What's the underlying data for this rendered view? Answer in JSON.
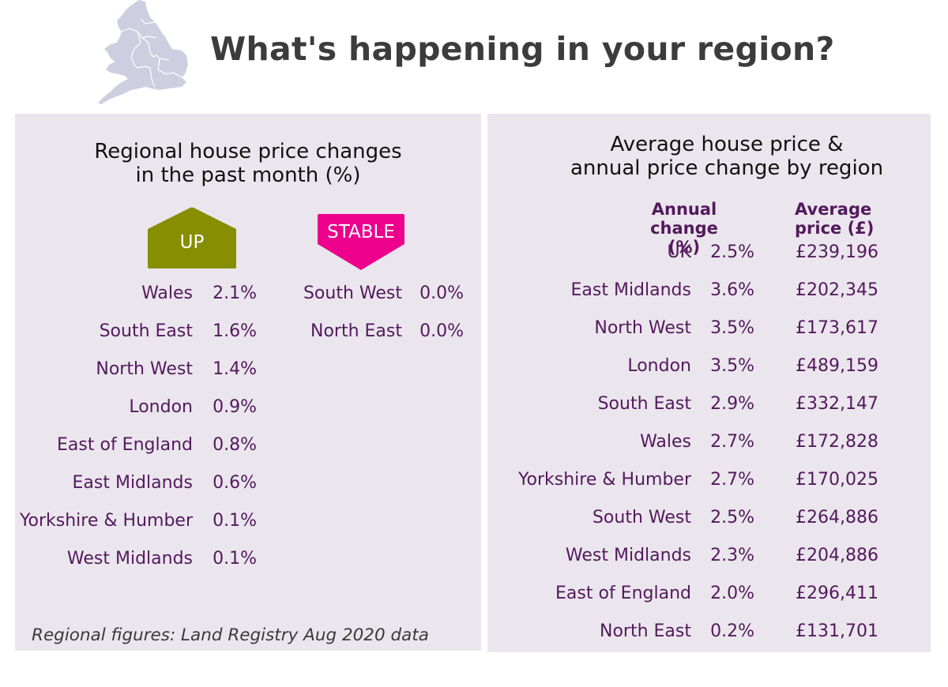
{
  "header": {
    "title": "What's happening in your region?",
    "map_icon": "england-wales-map-icon"
  },
  "colors": {
    "panel_bg": "#ebe6ed",
    "text_purple": "#53195d",
    "up_badge": "#878e00",
    "stable_badge": "#ec008c",
    "title_gray": "#3c3c3c"
  },
  "left_panel": {
    "title_line1": "Regional house price changes",
    "title_line2": "in the past month (%)",
    "up_label": "UP",
    "stable_label": "STABLE",
    "up_regions": [
      {
        "region": "Wales",
        "change": "2.1%"
      },
      {
        "region": "South East",
        "change": "1.6%"
      },
      {
        "region": "North West",
        "change": "1.4%"
      },
      {
        "region": "London",
        "change": "0.9%"
      },
      {
        "region": "East of England",
        "change": "0.8%"
      },
      {
        "region": "East Midlands",
        "change": "0.6%"
      },
      {
        "region": "Yorkshire & Humber",
        "change": "0.1%"
      },
      {
        "region": "West Midlands",
        "change": "0.1%"
      }
    ],
    "stable_regions": [
      {
        "region": "South West",
        "change": "0.0%"
      },
      {
        "region": "North East",
        "change": "0.0%"
      }
    ],
    "source_note": "Regional figures: Land Registry Aug 2020 data"
  },
  "right_panel": {
    "title_line1": "Average house price &",
    "title_line2": "annual price change by region",
    "col_change_line1": "Annual",
    "col_change_line2": "change (%)",
    "col_price_line1": "Average",
    "col_price_line2": "price (£)",
    "rows": [
      {
        "region": "UK",
        "change": "2.5%",
        "price": "£239,196"
      },
      {
        "region": "East Midlands",
        "change": "3.6%",
        "price": "£202,345"
      },
      {
        "region": "North West",
        "change": "3.5%",
        "price": "£173,617"
      },
      {
        "region": "London",
        "change": "3.5%",
        "price": "£489,159"
      },
      {
        "region": "South East",
        "change": "2.9%",
        "price": "£332,147"
      },
      {
        "region": "Wales",
        "change": "2.7%",
        "price": "£172,828"
      },
      {
        "region": "Yorkshire & Humber",
        "change": "2.7%",
        "price": "£170,025"
      },
      {
        "region": "South West",
        "change": "2.5%",
        "price": "£264,886"
      },
      {
        "region": "West Midlands",
        "change": "2.3%",
        "price": "£204,886"
      },
      {
        "region": "East of England",
        "change": "2.0%",
        "price": "£296,411"
      },
      {
        "region": "North East",
        "change": "0.2%",
        "price": "£131,701"
      }
    ]
  }
}
